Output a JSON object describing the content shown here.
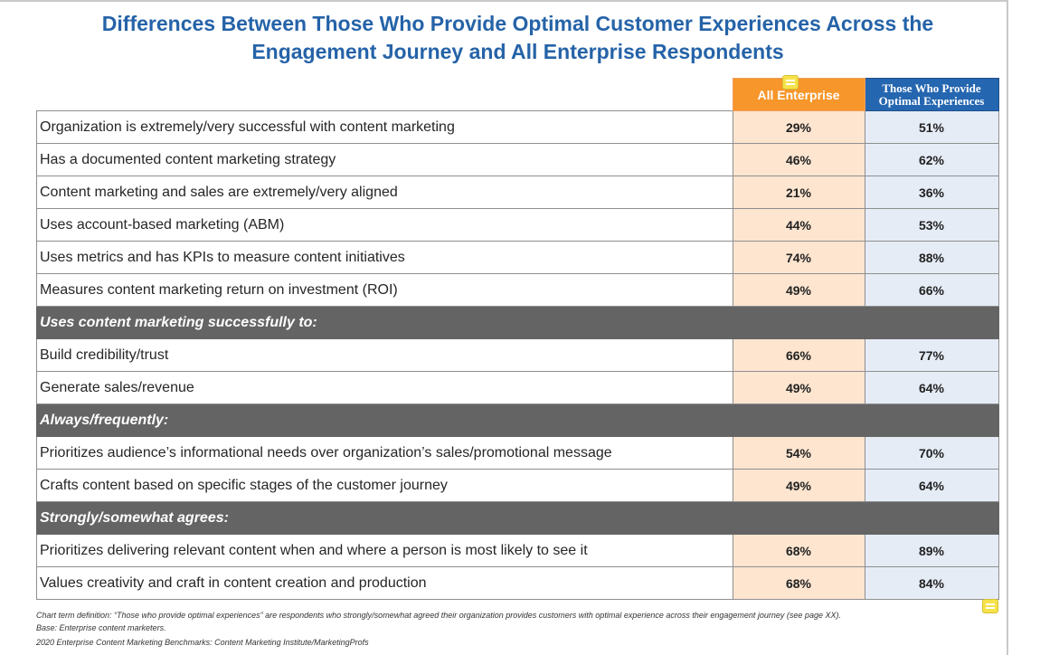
{
  "title": {
    "line1": "Differences Between Those Who Provide Optimal Customer Experiences Across the",
    "line2": "Engagement Journey and All Enterprise Respondents"
  },
  "headers": {
    "all_enterprise": "All Enterprise",
    "optimal": "Those Who Provide\nOptimal Experiences"
  },
  "rows": [
    {
      "label": "Organization is extremely/very successful with content marketing",
      "all": "29%",
      "optimal": "51%"
    },
    {
      "label": "Has a documented content marketing strategy",
      "all": "46%",
      "optimal": "62%"
    },
    {
      "label": "Content marketing and sales are extremely/very aligned",
      "all": "21%",
      "optimal": "36%"
    },
    {
      "label": "Uses account-based marketing (ABM)",
      "all": "44%",
      "optimal": "53%"
    },
    {
      "label": "Uses metrics and has KPIs to measure content initiatives",
      "all": "74%",
      "optimal": "88%"
    },
    {
      "label": "Measures content marketing return on investment (ROI)",
      "all": "49%",
      "optimal": "66%"
    }
  ],
  "sections": [
    {
      "heading": "Uses content marketing successfully to:",
      "rows": [
        {
          "label": "Build credibility/trust",
          "all": "66%",
          "optimal": "77%"
        },
        {
          "label": "Generate sales/revenue",
          "all": "49%",
          "optimal": "64%"
        }
      ]
    },
    {
      "heading": "Always/frequently:",
      "rows": [
        {
          "label": "Prioritizes audience’s informational needs over organization’s sales/promotional message",
          "all": "54%",
          "optimal": "70%"
        },
        {
          "label": "Crafts content based on specific stages of the customer journey",
          "all": "49%",
          "optimal": "64%"
        }
      ]
    },
    {
      "heading": "Strongly/somewhat agrees:",
      "rows": [
        {
          "label": "Prioritizes delivering relevant content when and where a person is most likely to see it",
          "all": "68%",
          "optimal": "89%"
        },
        {
          "label": "Values creativity and craft in content creation and production",
          "all": "68%",
          "optimal": "84%"
        }
      ]
    }
  ],
  "footnotes": {
    "definition": "Chart term definition: “Those who provide optimal experiences” are respondents who strongly/somewhat agreed their organization provides customers with optimal experience across their engagement journey (see page XX).",
    "base": "Base: Enterprise content marketers.",
    "source": "2020 Enterprise Content Marketing Benchmarks: Content Marketing Institute/MarketingProfs"
  },
  "colors": {
    "title": "#2563a8",
    "all_enterprise_header": "#f7962a",
    "optimal_header": "#2566b0",
    "all_enterprise_cell": "#fde5d0",
    "optimal_cell": "#e5ecf6",
    "section_row": "#646464"
  }
}
